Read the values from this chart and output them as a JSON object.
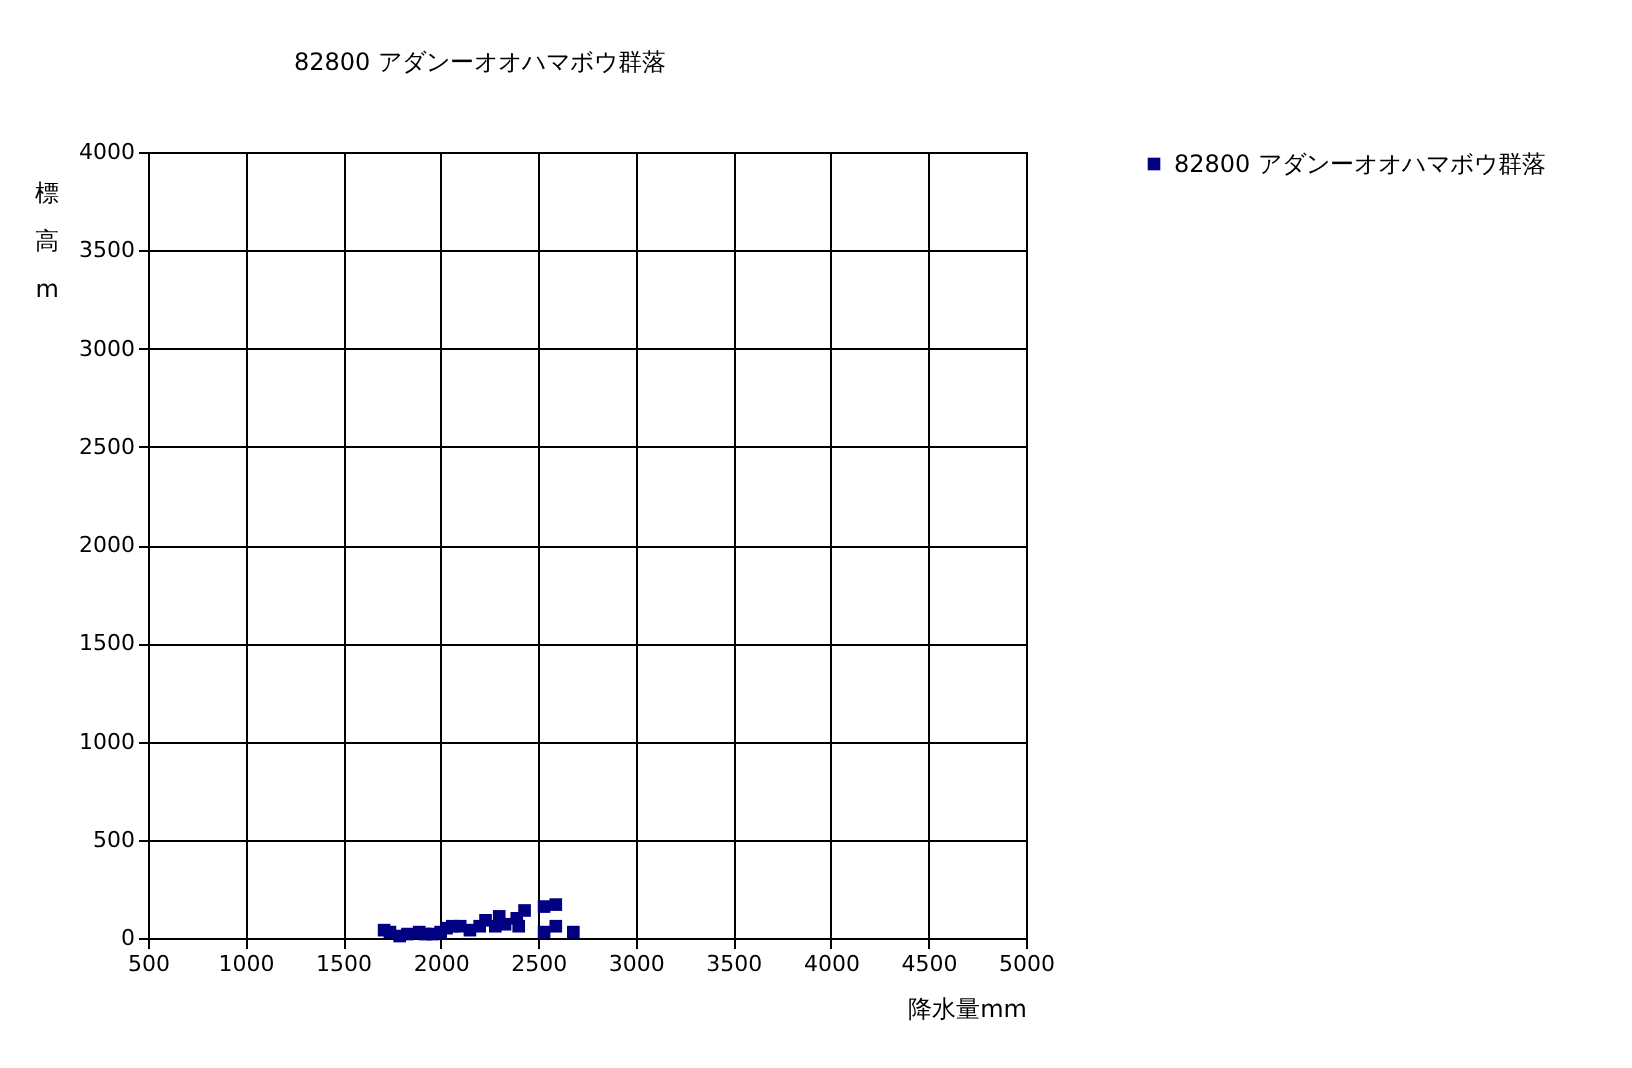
{
  "chart_data": {
    "type": "scatter",
    "title": "82800 アダンーオオハマボウ群落",
    "xlabel": "降水量mm",
    "ylabel": "標高m",
    "xlim": [
      500,
      5000
    ],
    "xticks": [
      500,
      1000,
      1500,
      2000,
      2500,
      3000,
      3500,
      4000,
      4500,
      5000
    ],
    "ylim": [
      0,
      4000
    ],
    "yticks": [
      0,
      500,
      1000,
      1500,
      2000,
      2500,
      3000,
      3500,
      4000
    ],
    "grid": true,
    "legend": "right",
    "marker": "square",
    "series": [
      {
        "name": "82800 アダンーオオハマボウ群落",
        "color": "#000080",
        "x": [
          1710,
          1740,
          1790,
          1830,
          1890,
          1920,
          1960,
          2000,
          2030,
          2060,
          2100,
          2150,
          2200,
          2230,
          2300,
          2280,
          2330,
          2390,
          2400,
          2430,
          2530,
          2590,
          2530,
          2590,
          2680
        ],
        "values": [
          40,
          30,
          10,
          20,
          30,
          20,
          20,
          30,
          50,
          60,
          60,
          40,
          60,
          90,
          110,
          60,
          70,
          100,
          60,
          140,
          160,
          170,
          30,
          60,
          30
        ]
      }
    ]
  }
}
